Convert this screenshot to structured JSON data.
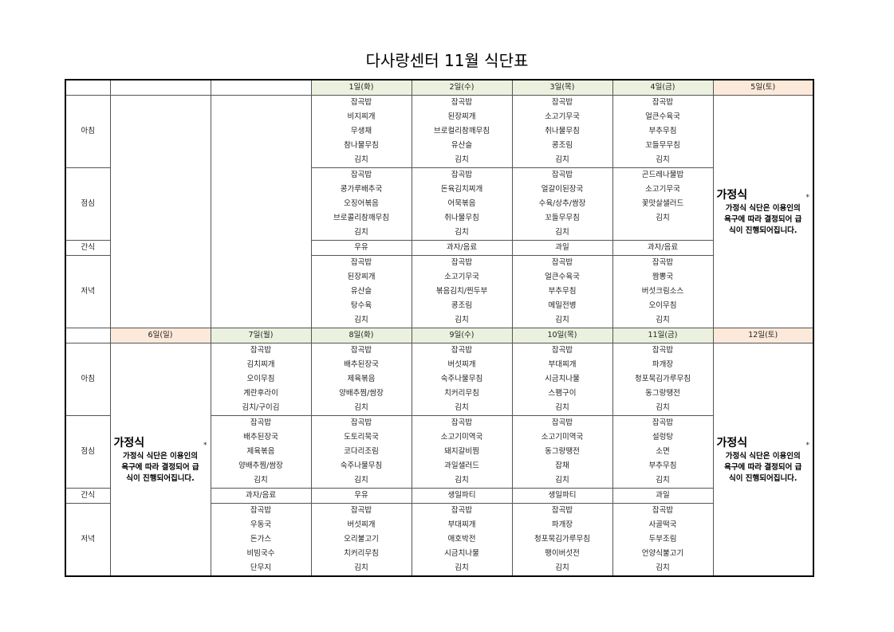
{
  "title": "다사랑센터 11월 식단표",
  "meal_labels": [
    "아침",
    "점심",
    "간식",
    "저녁"
  ],
  "colors": {
    "weekday_header": "#ebf1de",
    "weekend_header": "#fde9d9"
  },
  "home_meal": {
    "title": "가정식",
    "star": "*",
    "note": [
      "가정식 식단은 이용인의",
      "욕구에 따라 결정되어 급",
      "식이 진행되어집니다."
    ]
  },
  "weeks": [
    {
      "columns": [
        {
          "label": "",
          "type": "blank"
        },
        {
          "label": "",
          "type": "blank"
        },
        {
          "label": "1일(화)",
          "type": "day",
          "breakfast": [
            "잡곡밥",
            "비지찌개",
            "무생채",
            "참나물무침",
            "김치"
          ],
          "lunch": [
            "잡곡밥",
            "콩가루배추국",
            "오징어볶음",
            "브로콜리참깨무침",
            "김치"
          ],
          "snack": "우유",
          "dinner": [
            "잡곡밥",
            "된장찌개",
            "유산슬",
            "탕수육",
            "김치"
          ]
        },
        {
          "label": "2일(수)",
          "type": "day",
          "breakfast": [
            "잡곡밥",
            "된장찌개",
            "브로컬리참깨무침",
            "유산슬",
            "김치"
          ],
          "lunch": [
            "잡곡밥",
            "돈육김치찌개",
            "어묵볶음",
            "취나물무침",
            "김치"
          ],
          "snack": "과자/음료",
          "dinner": [
            "잡곡밥",
            "소고기무국",
            "볶음김치/찐두부",
            "콩조림",
            "김치"
          ]
        },
        {
          "label": "3일(목)",
          "type": "day",
          "breakfast": [
            "잡곡밥",
            "소고기무국",
            "취나물무침",
            "콩조림",
            "김치"
          ],
          "lunch": [
            "잡곡밥",
            "얼갈이된장국",
            "수육/상추/쌈장",
            "꼬들무무침",
            "김치"
          ],
          "snack": "과일",
          "dinner": [
            "잡곡밥",
            "얼큰수육국",
            "부추무침",
            "메밀전병",
            "김치"
          ]
        },
        {
          "label": "4일(금)",
          "type": "day",
          "breakfast": [
            "잡곡밥",
            "얼큰수육국",
            "부추무침",
            "꼬들무무침",
            "김치"
          ],
          "lunch": [
            "곤드레나물밥",
            "소고기무국",
            "꽃맛살샐러드",
            "김치",
            ""
          ],
          "snack": "과자/음료",
          "dinner": [
            "잡곡밥",
            "짬뽕국",
            "버섯크림소스",
            "오이무침",
            "김치"
          ]
        },
        {
          "label": "5일(토)",
          "type": "home"
        }
      ]
    },
    {
      "columns": [
        {
          "label": "6일(일)",
          "type": "home"
        },
        {
          "label": "7일(월)",
          "type": "day",
          "breakfast": [
            "잡곡밥",
            "김치찌개",
            "오이무침",
            "계란후라이",
            "김치/구이김"
          ],
          "lunch": [
            "잡곡밥",
            "배추된장국",
            "제육볶음",
            "양배추찜/쌈장",
            "김치"
          ],
          "snack": "과자/음료",
          "dinner": [
            "잡곡밥",
            "우동국",
            "돈가스",
            "비빔국수",
            "단무지"
          ]
        },
        {
          "label": "8일(화)",
          "type": "day",
          "breakfast": [
            "잡곡밥",
            "배추된장국",
            "제육볶음",
            "양배추찜/쌈장",
            "김치"
          ],
          "lunch": [
            "잡곡밥",
            "도토리묵국",
            "코다리조림",
            "숙주나물무침",
            "김치"
          ],
          "snack": "우유",
          "dinner": [
            "잡곡밥",
            "버섯찌개",
            "오리불고기",
            "치커리무침",
            "김치"
          ]
        },
        {
          "label": "9일(수)",
          "type": "day",
          "breakfast": [
            "잡곡밥",
            "버섯찌개",
            "숙주나물무침",
            "치커리무침",
            "김치"
          ],
          "lunch": [
            "잡곡밥",
            "소고기미역국",
            "돼지갈비찜",
            "과일샐러드",
            "김치"
          ],
          "snack": "생일파티",
          "dinner": [
            "잡곡밥",
            "부대찌개",
            "애호박전",
            "시금치나물",
            "김치"
          ]
        },
        {
          "label": "10일(목)",
          "type": "day",
          "breakfast": [
            "잡곡밥",
            "부대찌개",
            "시금치나물",
            "스팸구이",
            "김치"
          ],
          "lunch": [
            "잡곡밥",
            "소고기미역국",
            "동그랑땡전",
            "잡채",
            "김치"
          ],
          "snack": "생일파티",
          "dinner": [
            "잡곡밥",
            "파개장",
            "청포묵김가루무침",
            "팽이버섯전",
            "김치"
          ]
        },
        {
          "label": "11일(금)",
          "type": "day",
          "breakfast": [
            "잡곡밥",
            "파개장",
            "청포묵김가루무침",
            "동그랑땡전",
            "김치"
          ],
          "lunch": [
            "잡곡밥",
            "설렁탕",
            "소면",
            "부추무침",
            "김치"
          ],
          "snack": "과일",
          "dinner": [
            "잡곡밥",
            "사골떡국",
            "두부조림",
            "언양식불고기",
            "김치"
          ]
        },
        {
          "label": "12일(토)",
          "type": "home"
        }
      ]
    }
  ]
}
